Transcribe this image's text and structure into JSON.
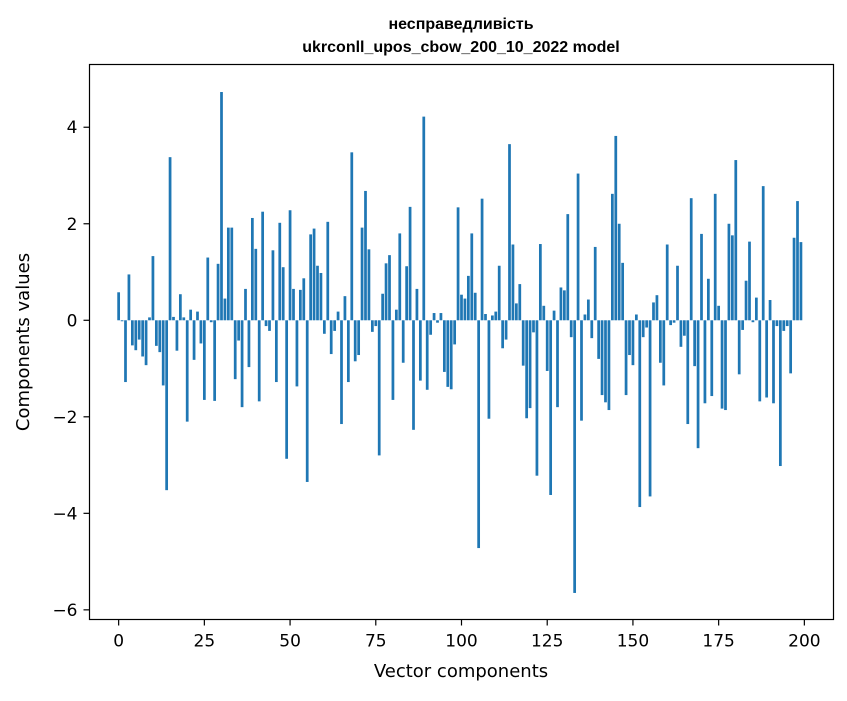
{
  "chart_data": {
    "type": "bar",
    "title": "несправедливість",
    "subtitle": "ukrconll_upos_cbow_200_10_2022 model",
    "xlabel": "Vector components",
    "ylabel": "Components values",
    "xlim": [
      -8.5,
      208.5
    ],
    "ylim": [
      -6.2,
      5.3
    ],
    "xticks": [
      0,
      25,
      50,
      75,
      100,
      125,
      150,
      175,
      200
    ],
    "xtick_labels": [
      "0",
      "25",
      "50",
      "75",
      "100",
      "125",
      "150",
      "175",
      "200"
    ],
    "yticks": [
      -6,
      -4,
      -2,
      0,
      2,
      4
    ],
    "ytick_labels": [
      "−6",
      "−4",
      "−2",
      "0",
      "2",
      "4"
    ],
    "grid": false,
    "legend": "none",
    "bar_color": "#1f77b4",
    "x": [
      0,
      1,
      2,
      3,
      4,
      5,
      6,
      7,
      8,
      9,
      10,
      11,
      12,
      13,
      14,
      15,
      16,
      17,
      18,
      19,
      20,
      21,
      22,
      23,
      24,
      25,
      26,
      27,
      28,
      29,
      30,
      31,
      32,
      33,
      34,
      35,
      36,
      37,
      38,
      39,
      40,
      41,
      42,
      43,
      44,
      45,
      46,
      47,
      48,
      49,
      50,
      51,
      52,
      53,
      54,
      55,
      56,
      57,
      58,
      59,
      60,
      61,
      62,
      63,
      64,
      65,
      66,
      67,
      68,
      69,
      70,
      71,
      72,
      73,
      74,
      75,
      76,
      77,
      78,
      79,
      80,
      81,
      82,
      83,
      84,
      85,
      86,
      87,
      88,
      89,
      90,
      91,
      92,
      93,
      94,
      95,
      96,
      97,
      98,
      99,
      100,
      101,
      102,
      103,
      104,
      105,
      106,
      107,
      108,
      109,
      110,
      111,
      112,
      113,
      114,
      115,
      116,
      117,
      118,
      119,
      120,
      121,
      122,
      123,
      124,
      125,
      126,
      127,
      128,
      129,
      130,
      131,
      132,
      133,
      134,
      135,
      136,
      137,
      138,
      139,
      140,
      141,
      142,
      143,
      144,
      145,
      146,
      147,
      148,
      149,
      150,
      151,
      152,
      153,
      154,
      155,
      156,
      157,
      158,
      159,
      160,
      161,
      162,
      163,
      164,
      165,
      166,
      167,
      168,
      169,
      170,
      171,
      172,
      173,
      174,
      175,
      176,
      177,
      178,
      179,
      180,
      181,
      182,
      183,
      184,
      185,
      186,
      187,
      188,
      189,
      190,
      191,
      192,
      193,
      194,
      195,
      196,
      197,
      198,
      199
    ],
    "values": [
      0.58,
      -0.02,
      -1.28,
      0.95,
      -0.52,
      -0.62,
      -0.4,
      -0.75,
      -0.93,
      0.06,
      1.33,
      -0.53,
      -0.66,
      -1.35,
      -3.52,
      3.38,
      0.07,
      -0.63,
      0.54,
      0.06,
      -2.1,
      0.22,
      -0.82,
      0.18,
      -0.48,
      -1.65,
      1.3,
      -0.04,
      -1.67,
      1.17,
      4.73,
      0.45,
      1.92,
      1.92,
      -1.22,
      -0.42,
      -1.8,
      0.65,
      -0.97,
      2.12,
      1.48,
      -1.68,
      2.25,
      -0.12,
      -0.22,
      1.45,
      -1.28,
      2.02,
      1.1,
      -2.87,
      2.28,
      0.65,
      -1.37,
      0.63,
      0.87,
      -3.35,
      1.78,
      1.9,
      1.13,
      0.98,
      -0.28,
      2.04,
      -0.7,
      -0.22,
      0.18,
      -2.15,
      0.5,
      -1.28,
      3.48,
      -0.85,
      -0.72,
      1.92,
      2.68,
      1.47,
      -0.24,
      -0.12,
      -2.8,
      0.55,
      1.18,
      1.35,
      -1.65,
      0.22,
      1.8,
      -0.88,
      1.12,
      2.35,
      -2.27,
      0.65,
      -1.25,
      4.22,
      -1.44,
      -0.3,
      0.15,
      -0.05,
      0.15,
      -1.07,
      -1.38,
      -1.43,
      -0.5,
      2.34,
      0.53,
      0.45,
      0.92,
      1.8,
      0.57,
      -4.72,
      2.52,
      0.13,
      -2.04,
      0.1,
      0.18,
      1.13,
      -0.58,
      -0.4,
      3.65,
      1.57,
      0.35,
      0.75,
      -0.94,
      -2.03,
      -1.82,
      -0.25,
      -3.22,
      1.58,
      0.3,
      -1.05,
      -3.62,
      0.2,
      -1.8,
      0.68,
      0.62,
      2.2,
      -0.35,
      -5.65,
      3.04,
      -2.08,
      0.12,
      0.43,
      -0.37,
      1.52,
      -0.8,
      -1.55,
      -1.7,
      -1.86,
      2.62,
      3.82,
      2.0,
      1.19,
      -1.55,
      -0.72,
      -0.93,
      0.12,
      -3.87,
      -0.35,
      -0.15,
      -3.65,
      0.37,
      0.52,
      -0.88,
      -1.35,
      1.57,
      -0.1,
      -0.05,
      1.13,
      -0.55,
      -0.32,
      -2.15,
      2.53,
      -0.95,
      -2.65,
      1.79,
      -1.72,
      0.86,
      -1.57,
      2.62,
      0.3,
      -1.83,
      -1.86,
      2.0,
      1.76,
      3.32,
      -1.12,
      -0.2,
      0.82,
      1.63,
      -0.04,
      0.47,
      -1.68,
      2.78,
      -1.6,
      0.42,
      -1.72,
      -0.12,
      -3.02,
      -0.22,
      -0.12,
      -1.1,
      1.71,
      2.47,
      1.62
    ]
  }
}
